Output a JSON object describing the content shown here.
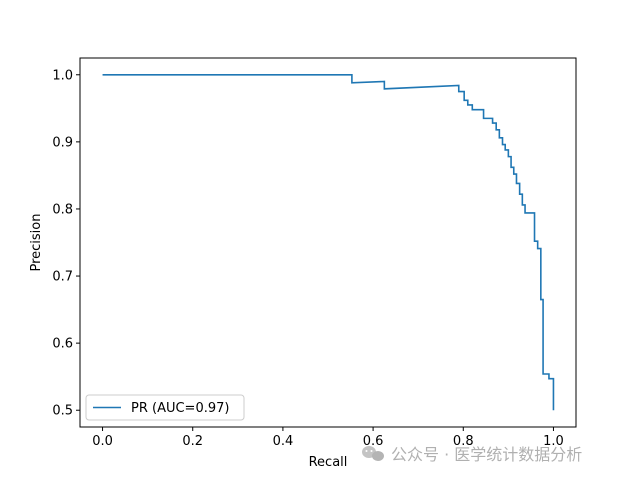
{
  "chart_data": {
    "type": "line",
    "title": "",
    "xlabel": "Recall",
    "ylabel": "Precision",
    "xlim": [
      -0.05,
      1.05
    ],
    "ylim": [
      0.475,
      1.025
    ],
    "x_ticks": [
      0.0,
      0.2,
      0.4,
      0.6,
      0.8,
      1.0
    ],
    "x_tick_labels": [
      "0.0",
      "0.2",
      "0.4",
      "0.6",
      "0.8",
      "1.0"
    ],
    "y_ticks": [
      0.5,
      0.6,
      0.7,
      0.8,
      0.9,
      1.0
    ],
    "y_tick_labels": [
      "0.5",
      "0.6",
      "0.7",
      "0.8",
      "0.9",
      "1.0"
    ],
    "grid": false,
    "legend_position": "lower-left",
    "series": [
      {
        "name": "PR (AUC=0.97)",
        "color": "#1f77b4",
        "drawstyle": "steps",
        "points": [
          [
            0.0,
            1.0
          ],
          [
            0.553,
            1.0
          ],
          [
            0.553,
            0.988
          ],
          [
            0.625,
            0.99
          ],
          [
            0.625,
            0.979
          ],
          [
            0.79,
            0.984
          ],
          [
            0.79,
            0.975
          ],
          [
            0.802,
            0.975
          ],
          [
            0.802,
            0.962
          ],
          [
            0.81,
            0.962
          ],
          [
            0.81,
            0.955
          ],
          [
            0.82,
            0.955
          ],
          [
            0.82,
            0.948
          ],
          [
            0.845,
            0.948
          ],
          [
            0.845,
            0.935
          ],
          [
            0.865,
            0.935
          ],
          [
            0.865,
            0.928
          ],
          [
            0.873,
            0.928
          ],
          [
            0.873,
            0.918
          ],
          [
            0.88,
            0.918
          ],
          [
            0.88,
            0.906
          ],
          [
            0.887,
            0.906
          ],
          [
            0.887,
            0.896
          ],
          [
            0.893,
            0.896
          ],
          [
            0.893,
            0.888
          ],
          [
            0.9,
            0.888
          ],
          [
            0.9,
            0.878
          ],
          [
            0.906,
            0.878
          ],
          [
            0.906,
            0.862
          ],
          [
            0.912,
            0.862
          ],
          [
            0.912,
            0.852
          ],
          [
            0.918,
            0.852
          ],
          [
            0.918,
            0.838
          ],
          [
            0.925,
            0.838
          ],
          [
            0.925,
            0.822
          ],
          [
            0.931,
            0.822
          ],
          [
            0.931,
            0.806
          ],
          [
            0.937,
            0.806
          ],
          [
            0.937,
            0.794
          ],
          [
            0.958,
            0.794
          ],
          [
            0.958,
            0.752
          ],
          [
            0.965,
            0.752
          ],
          [
            0.965,
            0.741
          ],
          [
            0.972,
            0.741
          ],
          [
            0.972,
            0.665
          ],
          [
            0.977,
            0.665
          ],
          [
            0.977,
            0.554
          ],
          [
            0.99,
            0.554
          ],
          [
            0.99,
            0.547
          ],
          [
            1.0,
            0.547
          ],
          [
            1.0,
            0.5
          ]
        ]
      }
    ]
  },
  "watermark": {
    "icon": "wechat-icon",
    "text": "公众号 · 医学统计数据分析"
  }
}
